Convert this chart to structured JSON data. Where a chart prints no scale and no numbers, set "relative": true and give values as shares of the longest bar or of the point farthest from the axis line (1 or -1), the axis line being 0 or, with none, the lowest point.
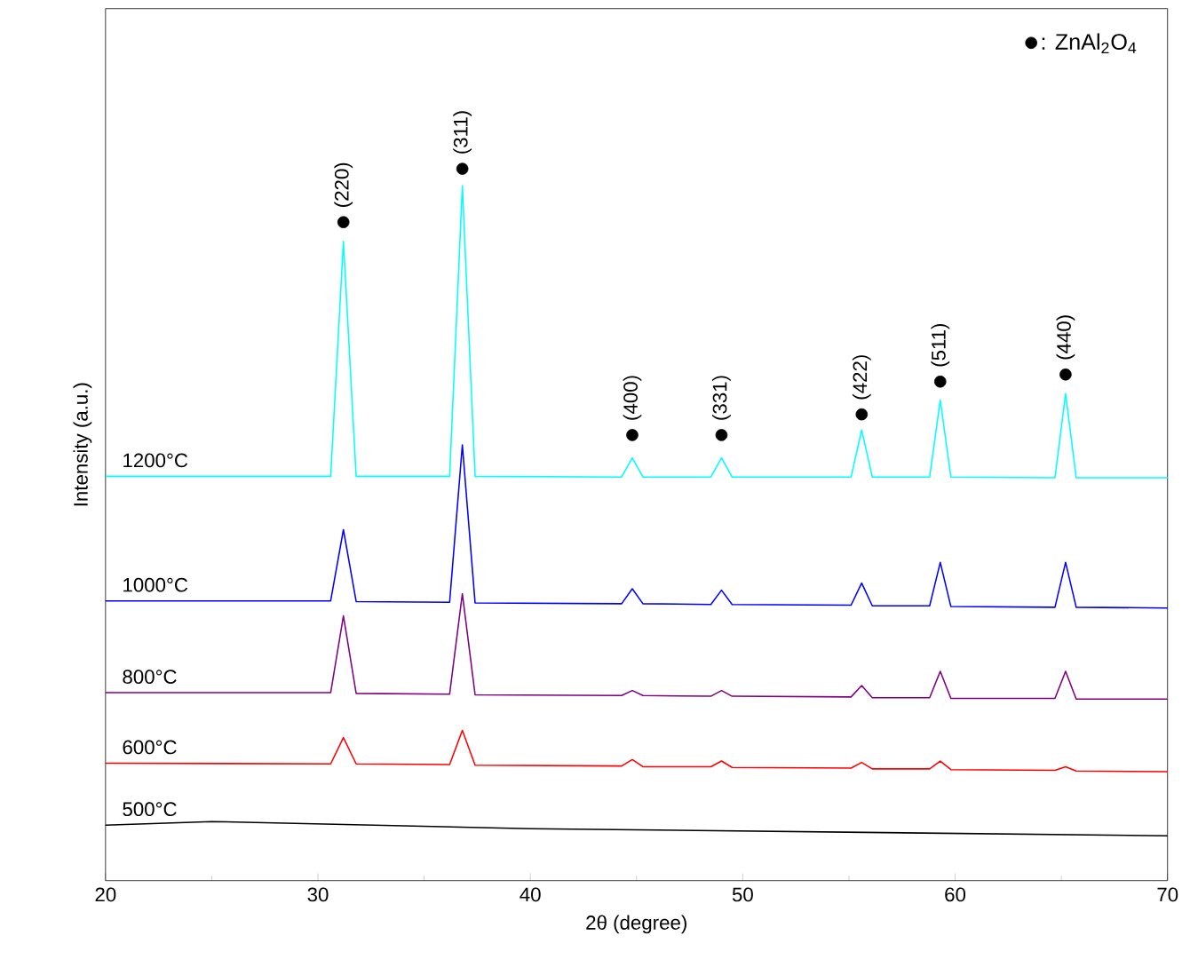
{
  "chart_data": {
    "type": "line",
    "relative": true,
    "xlabel": "2θ (degree)",
    "ylabel": "Intensity (a.u.)",
    "xlim": [
      20,
      70
    ],
    "xticks": [
      20,
      30,
      40,
      50,
      60,
      70
    ],
    "tick_labels": "x",
    "grid": false,
    "legend": "top right",
    "marker": "none",
    "line_style": "solid",
    "x": [
      20,
      30.6,
      31.2,
      31.8,
      36.2,
      36.8,
      37.4,
      44.3,
      44.8,
      45.3,
      48.5,
      49.0,
      49.5,
      55.1,
      55.6,
      56.1,
      58.8,
      59.3,
      59.8,
      64.7,
      65.2,
      65.7,
      70
    ],
    "series": [
      {
        "name": "1200°C",
        "color": "#00ffff",
        "values": [
          0.568,
          0.568,
          0.898,
          0.568,
          0.568,
          0.976,
          0.568,
          0.567,
          0.594,
          0.567,
          0.567,
          0.594,
          0.567,
          0.567,
          0.633,
          0.567,
          0.567,
          0.675,
          0.567,
          0.566,
          0.684,
          0.566,
          0.566
        ]
      },
      {
        "name": "1000°C",
        "color": "#0000ff",
        "values": [
          0.393,
          0.393,
          0.493,
          0.392,
          0.391,
          0.612,
          0.39,
          0.389,
          0.41,
          0.389,
          0.388,
          0.408,
          0.388,
          0.387,
          0.418,
          0.386,
          0.386,
          0.447,
          0.385,
          0.384,
          0.447,
          0.384,
          0.383
        ]
      },
      {
        "name": "800°C",
        "color": "#800080",
        "values": [
          0.264,
          0.264,
          0.372,
          0.263,
          0.262,
          0.403,
          0.261,
          0.26,
          0.267,
          0.26,
          0.259,
          0.267,
          0.259,
          0.258,
          0.274,
          0.257,
          0.257,
          0.294,
          0.256,
          0.256,
          0.294,
          0.255,
          0.255
        ]
      },
      {
        "name": "600°C",
        "color": "#ff0000",
        "values": [
          0.165,
          0.164,
          0.201,
          0.164,
          0.163,
          0.211,
          0.162,
          0.161,
          0.17,
          0.16,
          0.16,
          0.168,
          0.159,
          0.158,
          0.166,
          0.157,
          0.157,
          0.168,
          0.156,
          0.155,
          0.16,
          0.154,
          0.153
        ]
      },
      {
        "name": "500°C",
        "color": "#000000",
        "x": [
          20,
          25,
          40,
          70
        ],
        "values": [
          0.078,
          0.083,
          0.073,
          0.063
        ]
      },
      {
        "name": ": ZnAl$_{2}$O$_{4}$",
        "type": "scatter",
        "marker": "circle",
        "color": "#000000",
        "x": [
          31.2,
          36.8,
          44.8,
          49.0,
          55.6,
          59.3,
          65.2
        ],
        "values": [
          0.925,
          1.0,
          0.626,
          0.626,
          0.655,
          0.701,
          0.711
        ]
      }
    ],
    "annotations": [
      {
        "text": "(220)",
        "x": 31.2,
        "y": 0.925
      },
      {
        "text": "(311)",
        "x": 36.8,
        "y": 1.0
      },
      {
        "text": "(400)",
        "x": 44.8,
        "y": 0.626
      },
      {
        "text": "(331)",
        "x": 49.0,
        "y": 0.626
      },
      {
        "text": "(422)",
        "x": 55.6,
        "y": 0.655
      },
      {
        "text": "(511)",
        "x": 59.3,
        "y": 0.701
      },
      {
        "text": "(440)",
        "x": 65.2,
        "y": 0.711
      }
    ]
  }
}
